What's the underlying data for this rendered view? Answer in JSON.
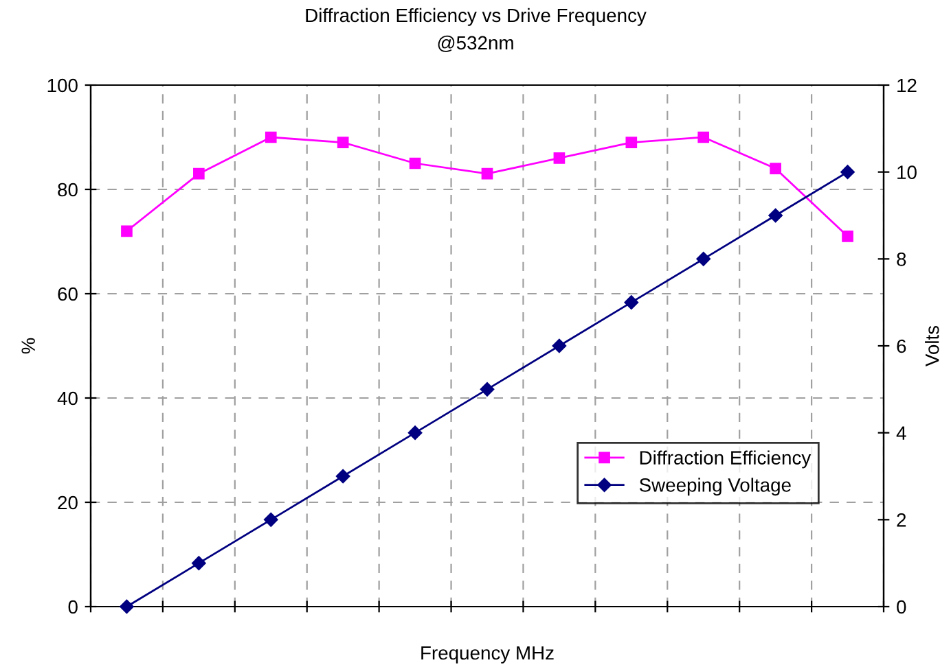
{
  "chart_data": {
    "type": "line",
    "title": "Diffraction Efficiency vs Drive Frequency",
    "subtitle": "@532nm",
    "xlabel": "Frequency MHz",
    "ylabel": "%",
    "y2label": "Volts",
    "categories": [
      null,
      null,
      null,
      null,
      null,
      null,
      null,
      null,
      null,
      null,
      null
    ],
    "series": [
      {
        "name": "Diffraction Efficiency",
        "color": "#ff00ff",
        "marker": "square",
        "values": [
          72,
          83,
          90,
          89,
          85,
          83,
          86,
          89,
          90,
          84,
          71
        ]
      },
      {
        "name": "Sweeping Voltage",
        "color": "#000080",
        "marker": "diamond",
        "axis": "y2",
        "values": [
          0,
          1,
          2,
          3,
          4,
          5,
          6,
          7,
          8,
          9,
          10
        ]
      }
    ],
    "ylim": [
      0,
      100
    ],
    "yticks": [
      0,
      20,
      40,
      60,
      80,
      100
    ],
    "y2lim": [
      0,
      12
    ],
    "y2ticks": [
      0,
      2,
      4,
      6,
      8,
      10,
      12
    ],
    "grid": true,
    "legend": "bottom right",
    "line_style": "solid"
  }
}
